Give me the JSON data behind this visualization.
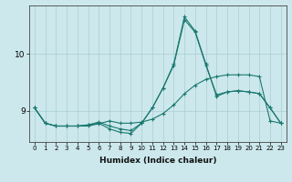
{
  "xlabel": "Humidex (Indice chaleur)",
  "ylabel": "",
  "bg_color": "#cce8ec",
  "grid_color": "#aacdd2",
  "line_color": "#1a7870",
  "x_ticks": [
    0,
    1,
    2,
    3,
    4,
    5,
    6,
    7,
    8,
    9,
    10,
    11,
    12,
    13,
    14,
    15,
    16,
    17,
    18,
    19,
    20,
    21,
    22,
    23
  ],
  "ylim": [
    8.45,
    10.85
  ],
  "xlim": [
    -0.5,
    23.5
  ],
  "yticks": [
    9,
    10
  ],
  "line1_x": [
    0,
    1,
    2,
    3,
    4,
    5,
    6,
    7,
    8,
    9,
    10,
    11,
    12,
    13,
    14,
    15,
    16,
    17,
    18,
    19,
    20,
    21,
    22,
    23
  ],
  "line1_y": [
    9.05,
    8.78,
    8.73,
    8.73,
    8.73,
    8.73,
    8.77,
    8.82,
    8.78,
    8.78,
    8.8,
    8.85,
    8.95,
    9.1,
    9.3,
    9.45,
    9.55,
    9.6,
    9.63,
    9.63,
    9.63,
    9.6,
    8.82,
    8.78
  ],
  "line2_x": [
    0,
    1,
    2,
    3,
    4,
    5,
    6,
    7,
    8,
    9,
    10,
    11,
    12,
    13,
    14,
    15,
    16,
    17,
    18,
    19,
    20,
    21,
    22,
    23
  ],
  "line2_y": [
    9.05,
    8.78,
    8.73,
    8.73,
    8.73,
    8.75,
    8.8,
    8.73,
    8.68,
    8.65,
    8.78,
    9.05,
    9.4,
    9.8,
    10.6,
    10.38,
    9.8,
    9.28,
    9.33,
    9.35,
    9.33,
    9.3,
    9.05,
    8.78
  ],
  "line3_x": [
    0,
    1,
    2,
    3,
    4,
    5,
    6,
    7,
    8,
    9,
    10,
    11,
    12,
    13,
    14,
    15,
    16,
    17,
    18,
    19,
    20,
    21,
    22,
    23
  ],
  "line3_y": [
    9.05,
    8.78,
    8.73,
    8.73,
    8.73,
    8.75,
    8.78,
    8.68,
    8.62,
    8.6,
    8.78,
    9.05,
    9.4,
    9.82,
    10.65,
    10.4,
    9.82,
    9.25,
    9.33,
    9.35,
    9.33,
    9.3,
    9.05,
    8.78
  ]
}
